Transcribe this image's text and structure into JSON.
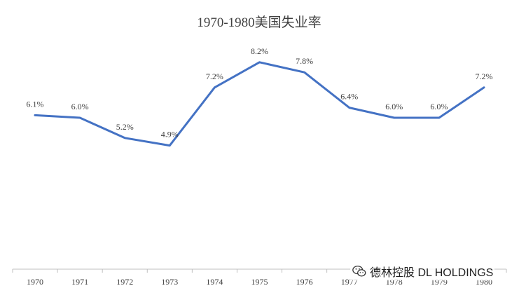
{
  "chart_data": {
    "type": "line",
    "title": "1970-1980美国失业率",
    "xlabel": "",
    "ylabel": "",
    "categories": [
      "1970",
      "1971",
      "1972",
      "1973",
      "1974",
      "1975",
      "1976",
      "1977",
      "1978",
      "1979",
      "1980"
    ],
    "series": [
      {
        "values": [
          6.1,
          6.0,
          5.2,
          4.9,
          7.2,
          8.2,
          7.8,
          6.4,
          6.0,
          6.0,
          7.2
        ],
        "labels": [
          "6.1%",
          "6.0%",
          "5.2%",
          "4.9%",
          "7.2%",
          "8.2%",
          "7.8%",
          "6.4%",
          "6.0%",
          "6.0%",
          "7.2%"
        ],
        "color": "#4472C4"
      }
    ],
    "ylim": [
      0,
      9.5
    ],
    "grid": false,
    "legend": "none",
    "axis_color": "#BFBFBF"
  },
  "watermark": {
    "text": "德林控股 DL HOLDINGS",
    "icon": "wechat-icon"
  }
}
